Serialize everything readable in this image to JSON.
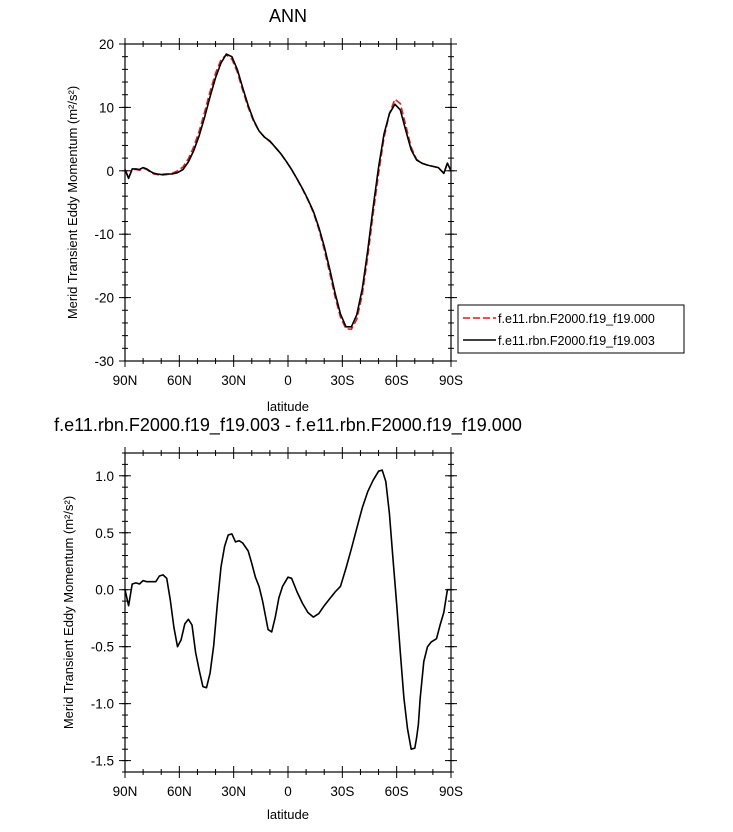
{
  "chart_data": [
    {
      "type": "line",
      "title": "ANN",
      "xlabel": "latitude",
      "ylabel": "Merid Transient Eddy Momentum (m²/s²)",
      "xlim": [
        90,
        -90
      ],
      "ylim": [
        -30,
        20
      ],
      "xticks": [
        90,
        60,
        30,
        0,
        -30,
        -60,
        -90
      ],
      "xticklabels": [
        "90N",
        "60N",
        "30N",
        "0",
        "30S",
        "60S",
        "90S"
      ],
      "yticks": [
        20,
        10,
        0,
        -10,
        -20,
        -30
      ],
      "yticklabels": [
        "20",
        "10",
        "0",
        "-10",
        "-20",
        "-30"
      ],
      "legend": "right",
      "series": [
        {
          "name": "f.e11.rbn.F2000.f19_f19.000",
          "color": "#e31a1c",
          "dash": "dashed",
          "x": [
            90,
            88,
            86,
            84,
            82,
            80,
            78,
            76,
            74,
            72,
            70,
            67,
            64,
            61,
            58,
            55,
            52,
            49,
            46,
            43,
            40,
            37,
            34,
            31,
            28,
            25,
            22,
            19,
            16,
            13,
            10,
            7,
            4,
            1,
            -2,
            -5,
            -8,
            -11,
            -14,
            -17,
            -20,
            -23,
            -26,
            -29,
            -32,
            -35,
            -38,
            -41,
            -44,
            -47,
            -50,
            -53,
            -56,
            -59,
            -62,
            -65,
            -68,
            -71,
            -74,
            -77,
            -80,
            -83,
            -86,
            -88,
            -90
          ],
          "y": [
            0.2,
            -1.1,
            0.2,
            0.2,
            0.1,
            0.4,
            0.2,
            -0.2,
            -0.5,
            -0.6,
            -0.7,
            -0.6,
            -0.4,
            0.0,
            0.6,
            1.9,
            3.8,
            6.3,
            9.3,
            12.5,
            15.4,
            17.5,
            18.3,
            17.6,
            15.6,
            12.7,
            10.0,
            7.8,
            6.3,
            5.3,
            4.6,
            3.7,
            2.7,
            1.5,
            0.2,
            -1.3,
            -2.9,
            -4.6,
            -6.6,
            -9.2,
            -12.4,
            -16.1,
            -19.9,
            -23.1,
            -24.9,
            -25.0,
            -23.4,
            -19.5,
            -13.6,
            -6.8,
            -0.4,
            5.2,
            9.0,
            11.3,
            10.6,
            7.2,
            3.7,
            1.8,
            1.2,
            0.9,
            0.7,
            0.5,
            -0.4,
            1.2,
            0.0
          ]
        },
        {
          "name": "f.e11.rbn.F2000.f19_f19.003",
          "color": "#000000",
          "dash": "solid",
          "x": [
            90,
            88,
            86,
            84,
            82,
            80,
            78,
            76,
            74,
            72,
            70,
            67,
            64,
            61,
            58,
            55,
            52,
            49,
            46,
            43,
            40,
            37,
            34,
            31,
            28,
            25,
            22,
            19,
            16,
            13,
            10,
            7,
            4,
            1,
            -2,
            -5,
            -8,
            -11,
            -14,
            -17,
            -20,
            -23,
            -26,
            -29,
            -32,
            -35,
            -38,
            -41,
            -44,
            -47,
            -50,
            -53,
            -56,
            -59,
            -62,
            -65,
            -68,
            -71,
            -74,
            -77,
            -80,
            -83,
            -86,
            -88,
            -90
          ],
          "y": [
            0.2,
            -1.2,
            0.3,
            0.3,
            0.2,
            0.5,
            0.3,
            -0.1,
            -0.4,
            -0.5,
            -0.6,
            -0.5,
            -0.5,
            -0.3,
            0.2,
            1.4,
            3.2,
            5.6,
            8.5,
            11.7,
            14.7,
            17.0,
            18.4,
            18.0,
            16.0,
            13.1,
            10.3,
            8.0,
            6.3,
            5.3,
            4.7,
            3.7,
            2.7,
            1.5,
            0.2,
            -1.3,
            -2.8,
            -4.5,
            -6.4,
            -8.9,
            -11.9,
            -15.5,
            -19.3,
            -22.6,
            -24.6,
            -24.6,
            -22.7,
            -18.6,
            -12.6,
            -5.8,
            0.6,
            5.8,
            9.0,
            10.5,
            9.6,
            6.4,
            3.3,
            1.7,
            1.2,
            0.9,
            0.7,
            0.5,
            -0.4,
            1.2,
            0.0
          ]
        }
      ]
    },
    {
      "type": "line",
      "title": "f.e11.rbn.F2000.f19_f19.003 - f.e11.rbn.F2000.f19_f19.000",
      "xlabel": "latitude",
      "ylabel": "Merid Transient Eddy Momentum (m²/s²)",
      "xlim": [
        90,
        -90
      ],
      "ylim": [
        -1.6,
        1.2
      ],
      "xticks": [
        90,
        60,
        30,
        0,
        -30,
        -60,
        -90
      ],
      "xticklabels": [
        "90N",
        "60N",
        "30N",
        "0",
        "30S",
        "60S",
        "90S"
      ],
      "yticks": [
        1.0,
        0.5,
        0.0,
        -0.5,
        -1.0,
        -1.5
      ],
      "yticklabels": [
        "1.0",
        "0.5",
        "0.0",
        "-0.5",
        "-1.0",
        "-1.5"
      ],
      "series": [
        {
          "color": "#000000",
          "dash": "solid",
          "x": [
            90,
            88,
            86,
            84,
            82,
            80,
            78,
            76,
            73,
            71,
            69,
            67,
            65,
            63,
            61,
            59,
            57,
            55,
            53,
            51,
            49,
            47,
            45,
            43,
            41,
            39,
            37,
            35,
            33,
            31,
            29,
            27,
            25,
            22,
            20,
            18,
            16,
            14,
            11,
            9,
            7,
            5,
            3,
            0,
            -2,
            -5,
            -8,
            -11,
            -14,
            -17,
            -20,
            -23,
            -26,
            -29,
            -32,
            -35,
            -38,
            -41,
            -44,
            -47,
            -50,
            -52,
            -54,
            -56,
            -58,
            -60,
            -62,
            -64,
            -66,
            -68,
            -70,
            -71,
            -72,
            -73,
            -75,
            -77,
            -79,
            -82,
            -84,
            -86,
            -88,
            -90
          ],
          "y": [
            0.0,
            -0.14,
            0.05,
            0.06,
            0.05,
            0.08,
            0.07,
            0.07,
            0.07,
            0.12,
            0.13,
            0.1,
            -0.09,
            -0.33,
            -0.5,
            -0.44,
            -0.3,
            -0.26,
            -0.31,
            -0.55,
            -0.71,
            -0.85,
            -0.86,
            -0.73,
            -0.49,
            -0.12,
            0.2,
            0.38,
            0.48,
            0.49,
            0.42,
            0.43,
            0.41,
            0.34,
            0.23,
            0.11,
            0.03,
            -0.1,
            -0.35,
            -0.37,
            -0.24,
            -0.07,
            0.03,
            0.11,
            0.1,
            -0.02,
            -0.12,
            -0.2,
            -0.24,
            -0.21,
            -0.14,
            -0.08,
            -0.02,
            0.03,
            0.19,
            0.36,
            0.54,
            0.72,
            0.86,
            0.96,
            1.04,
            1.05,
            0.95,
            0.67,
            0.27,
            -0.13,
            -0.55,
            -0.95,
            -1.22,
            -1.4,
            -1.39,
            -1.3,
            -1.18,
            -0.95,
            -0.63,
            -0.5,
            -0.46,
            -0.43,
            -0.31,
            -0.2,
            0.0,
            0.0
          ]
        }
      ]
    }
  ]
}
